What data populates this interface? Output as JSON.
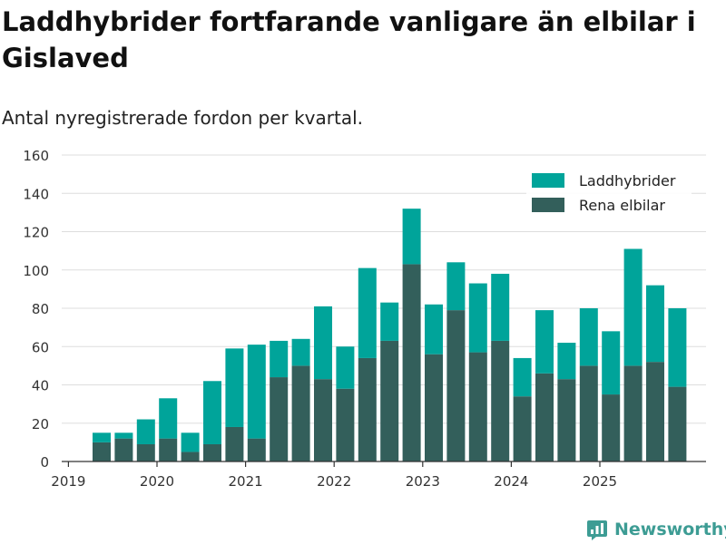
{
  "title": "Laddhybrider fortfarande vanligare än elbilar i Gislaved",
  "subtitle": "Antal nyregistrerade fordon per kvartal.",
  "brand": "Newsworthy",
  "colors": {
    "laddhybrider": "#00a49a",
    "elbilar": "#335f5b",
    "grid": "#dddddd",
    "axis": "#333333"
  },
  "chart_data": {
    "type": "bar",
    "stacked": true,
    "title": "Laddhybrider fortfarande vanligare än elbilar i Gislaved",
    "subtitle": "Antal nyregistrerade fordon per kvartal.",
    "xlabel": "",
    "ylabel": "",
    "ylim": [
      0,
      160
    ],
    "yticks": [
      0,
      20,
      40,
      60,
      80,
      100,
      120,
      140,
      160
    ],
    "year_ticks": [
      "2019",
      "2020",
      "2021",
      "2022",
      "2023",
      "2024",
      "2025"
    ],
    "legend_position": "top-right",
    "categories": [
      "2019 Q2",
      "2019 Q3",
      "2019 Q4",
      "2020 Q1",
      "2020 Q2",
      "2020 Q3",
      "2020 Q4",
      "2021 Q1",
      "2021 Q2",
      "2021 Q3",
      "2021 Q4",
      "2022 Q1",
      "2022 Q2",
      "2022 Q3",
      "2022 Q4",
      "2023 Q1",
      "2023 Q2",
      "2023 Q3",
      "2023 Q4",
      "2024 Q1",
      "2024 Q2",
      "2024 Q3",
      "2024 Q4",
      "2025 Q1",
      "2025 Q2",
      "2025 Q3",
      "2025 Q4"
    ],
    "series": [
      {
        "name": "Rena elbilar",
        "values": [
          10,
          12,
          9,
          12,
          5,
          9,
          18,
          12,
          44,
          50,
          43,
          38,
          54,
          63,
          103,
          56,
          79,
          57,
          63,
          34,
          46,
          43,
          50,
          35,
          50,
          52,
          39
        ]
      },
      {
        "name": "Laddhybrider",
        "values": [
          5,
          3,
          13,
          21,
          10,
          33,
          41,
          49,
          19,
          14,
          38,
          22,
          47,
          20,
          29,
          26,
          25,
          36,
          35,
          20,
          33,
          19,
          30,
          33,
          61,
          40,
          41
        ]
      }
    ],
    "legend": [
      "Laddhybrider",
      "Rena elbilar"
    ]
  }
}
